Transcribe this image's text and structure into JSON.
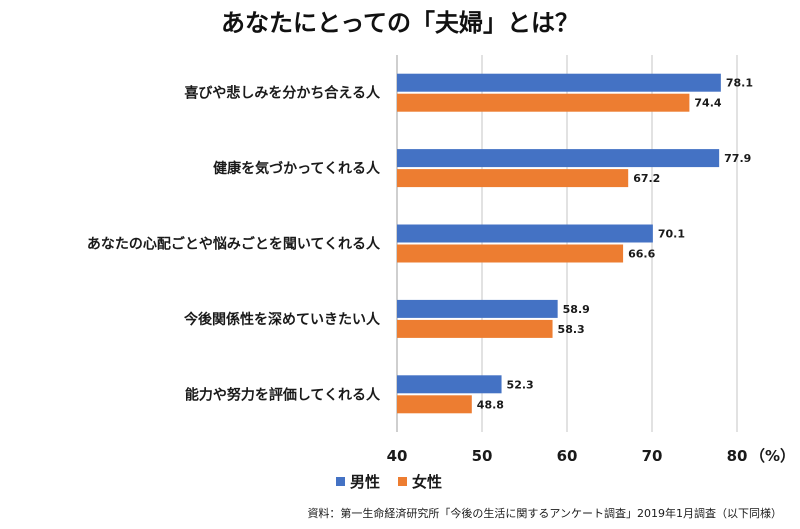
{
  "chart_data": {
    "type": "bar",
    "orientation": "horizontal",
    "title": "あなたにとっての「夫婦」とは？",
    "categories": [
      "喜びや悲しみを分かち合える人",
      "健康を気づかってくれる人",
      "あなたの心配ごとや悩みごとを聞いてくれる人",
      "今後関係性を深めていきたい人",
      "能力や努力を評価してくれる人"
    ],
    "series": [
      {
        "name": "男性",
        "color": "#4472C4",
        "values": [
          78.1,
          77.9,
          70.1,
          58.9,
          52.3
        ]
      },
      {
        "name": "女性",
        "color": "#ED7D31",
        "values": [
          74.4,
          67.2,
          66.6,
          58.3,
          48.8
        ]
      }
    ],
    "xlim": [
      40,
      80
    ],
    "xticks": [
      40,
      50,
      60,
      70,
      80
    ],
    "xunit": "（%）",
    "grid": true,
    "legend_position": "bottom-left"
  },
  "source": "資料：第一生命経済研究所「今後の生活に関するアンケート調査」2019年1月調査（以下同様）"
}
